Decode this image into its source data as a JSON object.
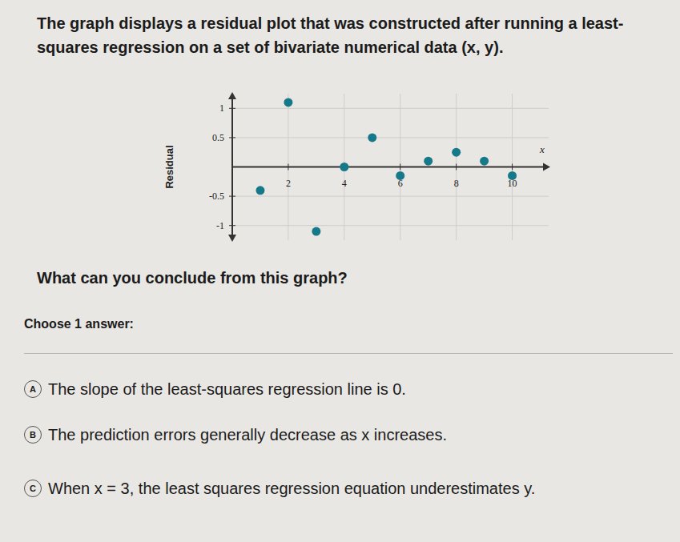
{
  "page": {
    "intro": "The graph displays a residual plot that was constructed after running a least-squares regression on a set of bivariate numerical data (x, y).",
    "question": "What can you conclude from this graph?",
    "prompt": "Choose 1 answer:",
    "options": [
      {
        "letter": "A",
        "text": "The slope of the least-squares regression line is 0."
      },
      {
        "letter": "B",
        "text": "The prediction errors generally decrease as x increases."
      },
      {
        "letter": "C",
        "text": "When x = 3, the least squares regression equation underestimates y."
      }
    ]
  },
  "chart_data": {
    "type": "scatter",
    "x_label": "x",
    "y_label": "Residual",
    "x": [
      1,
      2,
      3,
      4,
      5,
      6,
      7,
      8,
      9,
      10
    ],
    "values": [
      -0.4,
      1.1,
      -1.1,
      0,
      0.5,
      -0.15,
      0.1,
      0.25,
      0.1,
      -0.15
    ],
    "color": "#16798a",
    "marker": "circle",
    "xlim": [
      0,
      11.3
    ],
    "ylim": [
      -1.25,
      1.25
    ],
    "xticks": [
      2,
      4,
      6,
      8,
      10
    ],
    "yticks": [
      -1,
      -0.5,
      0.5,
      1
    ],
    "grid": true
  }
}
